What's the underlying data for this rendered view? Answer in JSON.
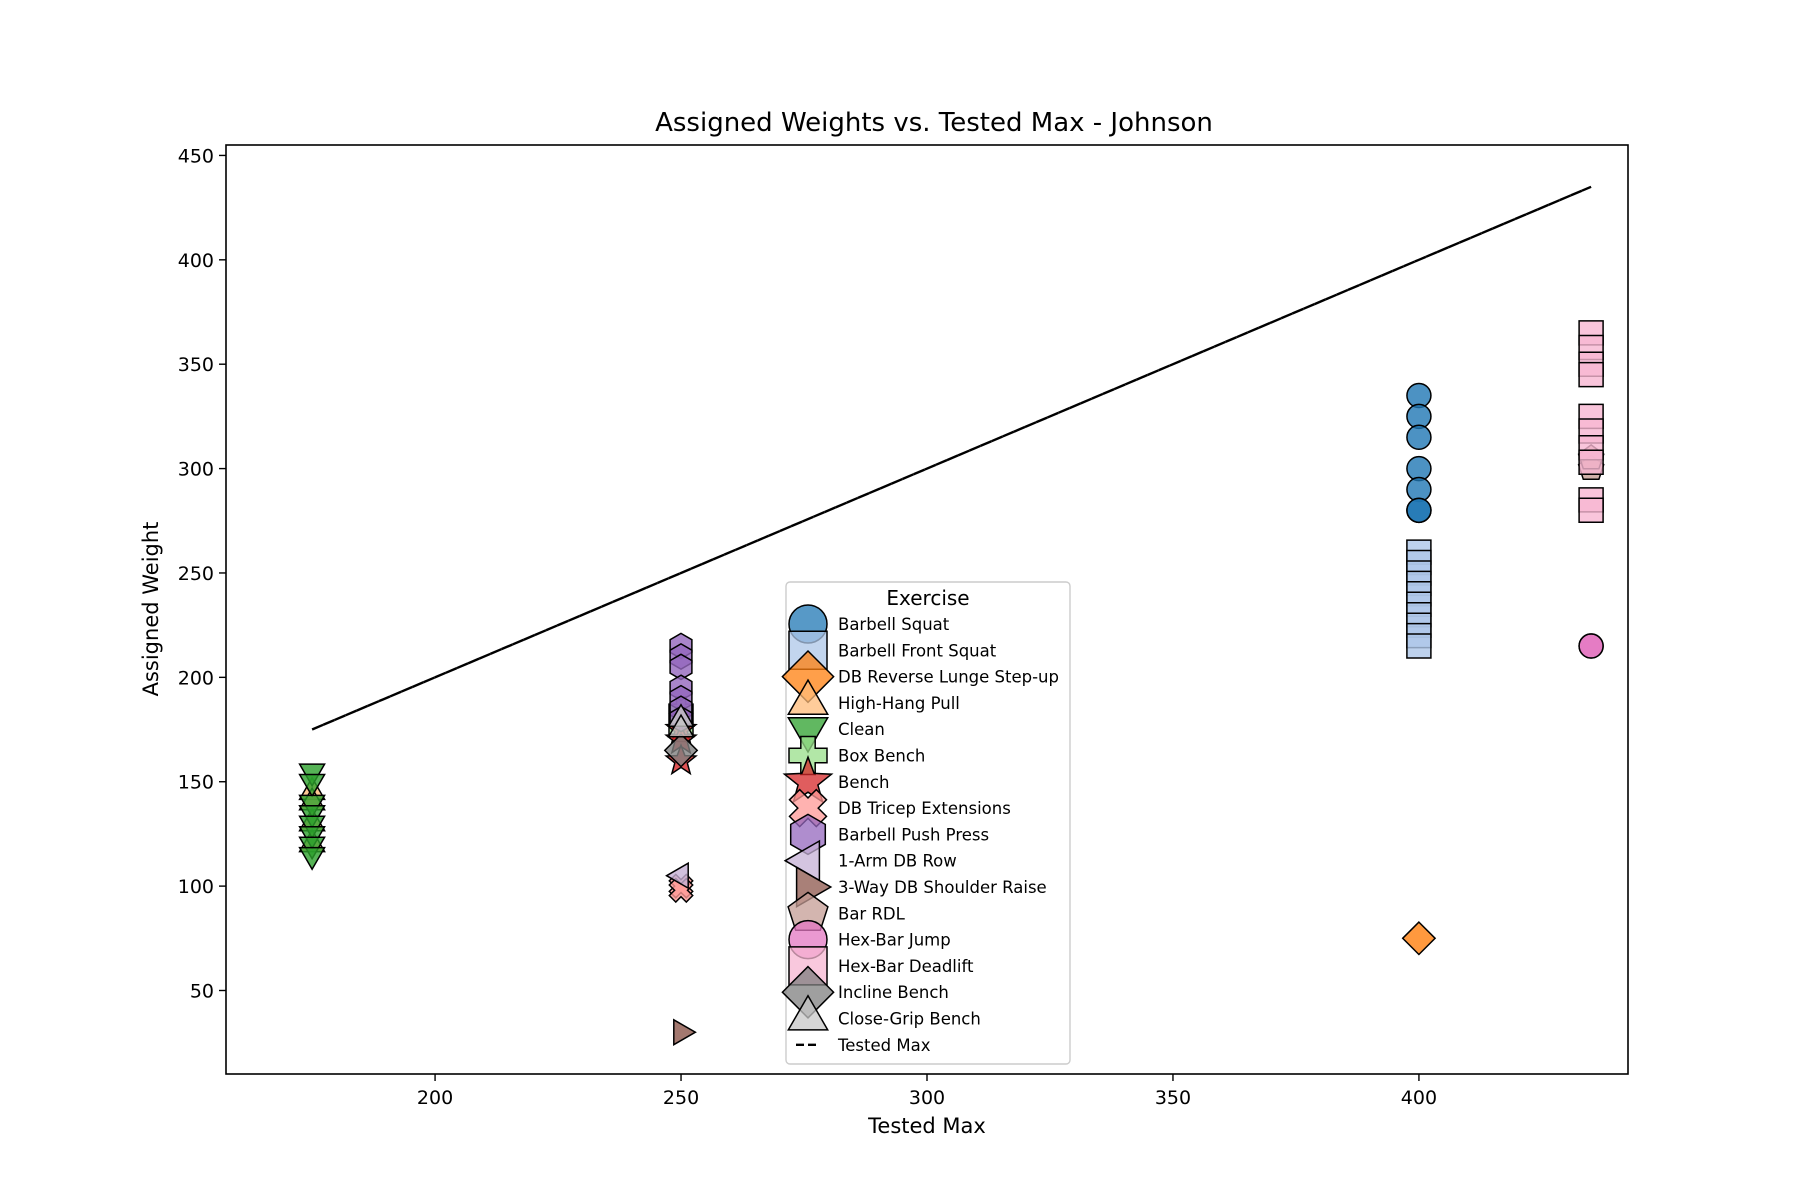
{
  "chart_data": {
    "type": "scatter",
    "title": "Assigned Weights vs. Tested Max - Johnson",
    "xlabel": "Tested Max",
    "ylabel": "Assigned Weight",
    "xlim": [
      157.5,
      442.5
    ],
    "ylim": [
      10,
      455
    ],
    "xticks": [
      200,
      250,
      300,
      350,
      400
    ],
    "yticks": [
      50,
      100,
      150,
      200,
      250,
      300,
      350,
      400,
      450
    ],
    "grid": false,
    "legend": {
      "title": "Exercise",
      "placement": "bottom-center"
    },
    "series": [
      {
        "name": "Barbell Squat",
        "marker": "circle",
        "color": "#1f77b4",
        "points": [
          [
            400,
            335
          ],
          [
            400,
            325
          ],
          [
            400,
            315
          ],
          [
            400,
            300
          ],
          [
            400,
            290
          ],
          [
            400,
            280
          ],
          [
            400,
            280
          ]
        ]
      },
      {
        "name": "Barbell Front Squat",
        "marker": "square",
        "color": "#aec7e8",
        "points": [
          [
            400,
            260
          ],
          [
            400,
            255
          ],
          [
            400,
            250
          ],
          [
            400,
            245
          ],
          [
            400,
            240
          ],
          [
            400,
            235
          ],
          [
            400,
            230
          ],
          [
            400,
            225
          ],
          [
            400,
            220
          ],
          [
            400,
            215
          ]
        ]
      },
      {
        "name": "DB Reverse Lunge Step-up",
        "marker": "diamond",
        "color": "#ff7f0e",
        "points": [
          [
            400,
            75
          ]
        ]
      },
      {
        "name": "High-Hang Pull",
        "marker": "triangle-up",
        "color": "#ffbb78",
        "points": [
          [
            175,
            145
          ],
          [
            175,
            140
          ],
          [
            175,
            130
          ],
          [
            175,
            120
          ]
        ]
      },
      {
        "name": "Clean",
        "marker": "triangle-down",
        "color": "#2ca02c",
        "points": [
          [
            175,
            155
          ],
          [
            175,
            150
          ],
          [
            175,
            140
          ],
          [
            175,
            135
          ],
          [
            175,
            130
          ],
          [
            175,
            125
          ],
          [
            175,
            120
          ],
          [
            175,
            115
          ]
        ]
      },
      {
        "name": "Box Bench",
        "marker": "plus",
        "color": "#98df8a",
        "points": [
          [
            250,
            185
          ],
          [
            250,
            180
          ],
          [
            250,
            175
          ]
        ]
      },
      {
        "name": "Bench",
        "marker": "star",
        "color": "#d62728",
        "points": [
          [
            250,
            175
          ],
          [
            250,
            170
          ],
          [
            250,
            160
          ]
        ]
      },
      {
        "name": "DB Tricep Extensions",
        "marker": "x",
        "color": "#ff9896",
        "points": [
          [
            250,
            100
          ],
          [
            250,
            98
          ]
        ]
      },
      {
        "name": "Barbell Push Press",
        "marker": "hexagon",
        "color": "#9467bd",
        "points": [
          [
            250,
            215
          ],
          [
            250,
            210
          ],
          [
            250,
            205
          ],
          [
            250,
            195
          ],
          [
            250,
            190
          ],
          [
            250,
            185
          ],
          [
            250,
            180
          ]
        ]
      },
      {
        "name": "1-Arm DB Row",
        "marker": "triangle-left",
        "color": "#c5b0d5",
        "points": [
          [
            250,
            105
          ]
        ]
      },
      {
        "name": "3-Way DB Shoulder Raise",
        "marker": "triangle-right",
        "color": "#8c564b",
        "points": [
          [
            250,
            30
          ]
        ]
      },
      {
        "name": "Bar RDL",
        "marker": "pentagon",
        "color": "#c49c94",
        "points": [
          [
            435,
            300
          ],
          [
            435,
            305
          ]
        ]
      },
      {
        "name": "Hex-Bar Jump",
        "marker": "circle",
        "color": "#e377c2",
        "points": [
          [
            435,
            215
          ],
          [
            435,
            215
          ]
        ]
      },
      {
        "name": "Hex-Bar Deadlift",
        "marker": "square",
        "color": "#f7b6d2",
        "points": [
          [
            435,
            365
          ],
          [
            435,
            358
          ],
          [
            435,
            350
          ],
          [
            435,
            345
          ],
          [
            435,
            325
          ],
          [
            435,
            318
          ],
          [
            435,
            310
          ],
          [
            435,
            303
          ],
          [
            435,
            285
          ],
          [
            435,
            280
          ]
        ]
      },
      {
        "name": "Incline Bench",
        "marker": "diamond",
        "color": "#7f7f7f",
        "points": [
          [
            250,
            165
          ]
        ]
      },
      {
        "name": "Close-Grip Bench",
        "marker": "triangle-up",
        "color": "#c7c7c7",
        "points": [
          [
            250,
            180
          ],
          [
            250,
            175
          ]
        ]
      }
    ],
    "reference_line": {
      "name": "Tested Max",
      "style": "dashed",
      "color": "#000000",
      "points": [
        [
          175,
          175
        ],
        [
          250,
          250
        ],
        [
          400,
          400
        ],
        [
          435,
          435
        ]
      ]
    }
  }
}
